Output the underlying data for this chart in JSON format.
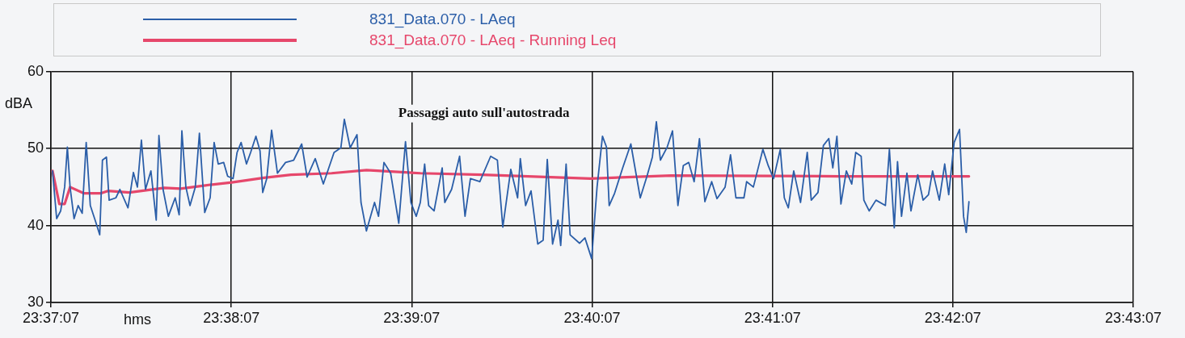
{
  "chart_data": {
    "type": "line",
    "annotations": [
      "Passaggi auto sull'autostrada"
    ],
    "xlabel": "hms",
    "ylabel": "dBA",
    "xlim": [
      23.618611,
      23.718611
    ],
    "xticks": [
      {
        "value": 23.618611,
        "label": "23:37:07"
      },
      {
        "value": 23.635278,
        "label": "23:38:07"
      },
      {
        "value": 23.651944,
        "label": "23:39:07"
      },
      {
        "value": 23.668611,
        "label": "23:40:07"
      },
      {
        "value": 23.685278,
        "label": "23:41:07"
      },
      {
        "value": 23.701944,
        "label": "23:42:07"
      },
      {
        "value": 23.718611,
        "label": "23:43:07"
      }
    ],
    "ylim": [
      30,
      60
    ],
    "yticks": [
      30,
      40,
      50,
      60
    ],
    "grid": true,
    "legend": "top left",
    "marker": "none",
    "line_style": "solid",
    "series": [
      {
        "name": "831_Data.070 - LAeq",
        "color": "#2b5ea8",
        "x": [
          23.61876,
          23.61914,
          23.61951,
          23.61988,
          23.62013,
          23.62038,
          23.62075,
          23.62113,
          23.6215,
          23.62187,
          23.62225,
          23.62274,
          23.62312,
          23.62337,
          23.62374,
          23.62399,
          23.62461,
          23.62498,
          23.62573,
          23.62623,
          23.6266,
          23.62697,
          23.62735,
          23.62785,
          23.62834,
          23.62859,
          23.62897,
          23.62946,
          23.63009,
          23.63046,
          23.63071,
          23.63108,
          23.63146,
          23.63195,
          23.63233,
          23.63282,
          23.63332,
          23.63369,
          23.63407,
          23.63457,
          23.63494,
          23.63544,
          23.63581,
          23.63618,
          23.63668,
          23.63706,
          23.63755,
          23.63793,
          23.63818,
          23.63855,
          23.639,
          23.63954,
          23.64029,
          23.64104,
          23.64178,
          23.64228,
          23.64303,
          23.64378,
          23.64477,
          23.6454,
          23.64572,
          23.64626,
          23.64689,
          23.64726,
          23.64776,
          23.64851,
          23.64888,
          23.64938,
          23.65,
          23.65075,
          23.65137,
          23.65187,
          23.65236,
          23.65274,
          23.65314,
          23.65351,
          23.65401,
          23.65476,
          23.655,
          23.65563,
          23.65637,
          23.65687,
          23.65737,
          23.65824,
          23.65924,
          23.65986,
          23.66036,
          23.6611,
          23.66173,
          23.66198,
          23.66247,
          23.66297,
          23.66359,
          23.66409,
          23.66447,
          23.66496,
          23.66546,
          23.66571,
          23.66621,
          23.66658,
          23.66745,
          23.66795,
          23.66857,
          23.66907,
          23.66957,
          23.66994,
          23.67019,
          23.67069,
          23.67144,
          23.67219,
          23.67306,
          23.67368,
          23.67418,
          23.67455,
          23.67492,
          23.67555,
          23.67604,
          23.67654,
          23.67704,
          23.67754,
          23.67804,
          23.67853,
          23.67903,
          23.67966,
          23.68015,
          23.6809,
          23.6814,
          23.6819,
          23.68264,
          23.68289,
          23.68351,
          23.68439,
          23.68488,
          23.68538,
          23.686,
          23.68637,
          23.68674,
          23.68724,
          23.68787,
          23.68849,
          23.68886,
          23.68948,
          23.68998,
          23.69048,
          23.69085,
          23.69123,
          23.6916,
          23.6921,
          23.6926,
          23.69297,
          23.69347,
          23.69372,
          23.69421,
          23.69484,
          23.69571,
          23.69608,
          23.69653,
          23.69683,
          23.6972,
          23.6977,
          23.69807,
          23.6987,
          23.69919,
          23.69969,
          23.70007,
          23.70069,
          23.70119,
          23.70156,
          23.70206,
          23.70256,
          23.70293,
          23.70318,
          23.70343
        ],
        "values": [
          47.1,
          40.9,
          41.9,
          45.0,
          50.2,
          45.0,
          40.9,
          42.6,
          41.6,
          50.8,
          42.6,
          40.5,
          38.8,
          48.5,
          48.9,
          43.3,
          43.6,
          44.7,
          42.3,
          46.9,
          45.0,
          51.1,
          44.7,
          47.1,
          40.7,
          51.7,
          44.7,
          41.2,
          43.6,
          41.4,
          52.3,
          45.0,
          42.6,
          45.0,
          52.0,
          41.7,
          43.6,
          50.8,
          48.0,
          48.2,
          46.4,
          46.1,
          49.5,
          50.8,
          48.0,
          49.5,
          51.6,
          49.7,
          44.3,
          46.1,
          52.4,
          46.8,
          48.2,
          48.5,
          50.6,
          46.3,
          48.7,
          45.4,
          49.5,
          50.1,
          53.8,
          50.1,
          51.8,
          43.0,
          39.3,
          43.0,
          41.2,
          48.2,
          46.8,
          40.3,
          50.9,
          43.0,
          41.2,
          43.0,
          48.0,
          42.6,
          41.9,
          47.5,
          43.0,
          44.7,
          49.0,
          41.2,
          46.1,
          45.7,
          49.0,
          48.5,
          39.8,
          47.3,
          43.6,
          48.7,
          42.6,
          44.5,
          37.6,
          38.1,
          48.6,
          37.6,
          40.7,
          37.4,
          48.0,
          38.8,
          37.7,
          38.4,
          35.7,
          45.0,
          51.6,
          50.2,
          42.6,
          44.2,
          47.5,
          50.6,
          43.6,
          46.4,
          48.9,
          53.5,
          48.5,
          50.2,
          52.3,
          42.6,
          47.8,
          48.2,
          45.7,
          51.3,
          43.1,
          45.7,
          43.5,
          45.0,
          49.2,
          43.6,
          43.6,
          45.7,
          45.0,
          49.9,
          47.8,
          46.1,
          49.9,
          43.6,
          42.3,
          47.1,
          43.0,
          49.5,
          43.3,
          44.3,
          50.4,
          51.3,
          47.5,
          51.6,
          42.8,
          47.1,
          45.4,
          49.5,
          49.0,
          43.3,
          41.9,
          43.3,
          42.6,
          49.9,
          39.7,
          48.3,
          41.2,
          46.8,
          41.9,
          46.6,
          43.3,
          44.0,
          47.1,
          43.3,
          48.0,
          44.0,
          50.8,
          52.5,
          41.2,
          39.1,
          43.1
        ]
      },
      {
        "name": "831_Data.070 - LAeq - Running Leq",
        "color": "#e6476b",
        "x": [
          23.61876,
          23.61939,
          23.61988,
          23.62038,
          23.62163,
          23.62325,
          23.62387,
          23.62586,
          23.6291,
          23.63059,
          23.63333,
          23.63532,
          23.63831,
          23.6408,
          23.64454,
          23.64777,
          23.65275,
          23.65849,
          23.66845,
          23.67592,
          23.6916,
          23.70343
        ],
        "values": [
          47.1,
          42.8,
          42.8,
          45.0,
          44.2,
          44.2,
          44.5,
          44.3,
          44.9,
          44.8,
          45.3,
          45.6,
          46.2,
          46.6,
          46.8,
          47.2,
          46.8,
          46.6,
          46.1,
          46.5,
          46.4,
          46.4
        ]
      }
    ]
  }
}
